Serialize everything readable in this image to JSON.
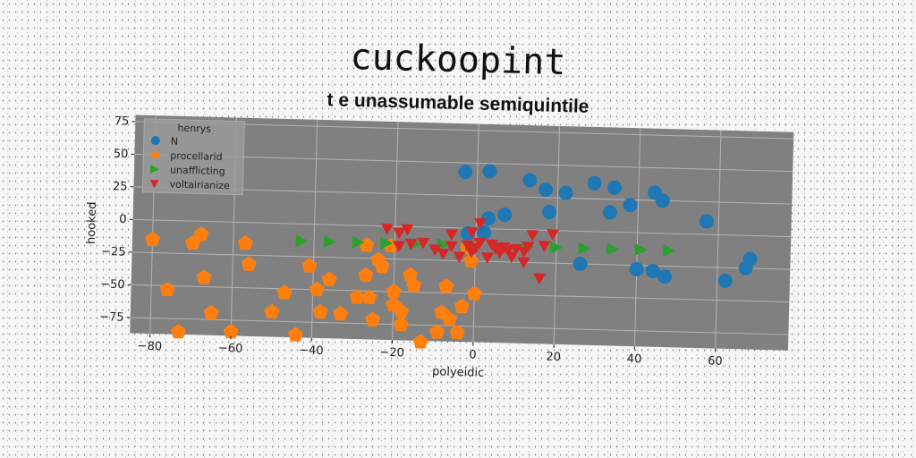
{
  "title": "cuckoopint",
  "subtitle": "t e unassumable semiquintile",
  "chart_data": {
    "type": "scatter",
    "xlabel": "polyeidic",
    "ylabel": "hooked",
    "xlim": [
      -85,
      78
    ],
    "ylim": [
      -87,
      80
    ],
    "xticks": [
      -80,
      -60,
      -40,
      -20,
      0,
      20,
      40,
      60
    ],
    "yticks": [
      75,
      50,
      25,
      0,
      -25,
      -50,
      -75
    ],
    "grid": true,
    "legend": {
      "title": "henrys",
      "position": "top-left"
    },
    "series": [
      {
        "name": "N",
        "color": "#1f77b4",
        "marker": "circle",
        "points": [
          [
            -3,
            43
          ],
          [
            3,
            44
          ],
          [
            13,
            38
          ],
          [
            17,
            31
          ],
          [
            22,
            29
          ],
          [
            29,
            37
          ],
          [
            34,
            34
          ],
          [
            38,
            21
          ],
          [
            44,
            31
          ],
          [
            46,
            25
          ],
          [
            33,
            15
          ],
          [
            18,
            14
          ],
          [
            7,
            11
          ],
          [
            3,
            8
          ],
          [
            2,
            -3
          ],
          [
            -2,
            -4
          ],
          [
            26,
            -25
          ],
          [
            40,
            -28
          ],
          [
            44,
            -29
          ],
          [
            47,
            -33
          ],
          [
            62,
            -35
          ],
          [
            68,
            -18
          ],
          [
            67,
            -25
          ],
          [
            57,
            10
          ]
        ]
      },
      {
        "name": "procellarid",
        "color": "#ff7f0e",
        "marker": "pentagon",
        "points": [
          [
            -80,
            -15
          ],
          [
            -76,
            -53
          ],
          [
            -73,
            -85
          ],
          [
            -70,
            -17
          ],
          [
            -68,
            -10
          ],
          [
            -67,
            -43
          ],
          [
            -65,
            -70
          ],
          [
            -60,
            -84
          ],
          [
            -57,
            -16
          ],
          [
            -56,
            -32
          ],
          [
            -50,
            -68
          ],
          [
            -47,
            -53
          ],
          [
            -44,
            -85
          ],
          [
            -41,
            -32
          ],
          [
            -39,
            -50
          ],
          [
            -38,
            -67
          ],
          [
            -36,
            -42
          ],
          [
            -33,
            -68
          ],
          [
            -29,
            -55
          ],
          [
            -27,
            -15
          ],
          [
            -27,
            -38
          ],
          [
            -26,
            -55
          ],
          [
            -25,
            -72
          ],
          [
            -24,
            -26
          ],
          [
            -23,
            -31
          ],
          [
            -21,
            -15
          ],
          [
            -20,
            -50
          ],
          [
            -20,
            -60
          ],
          [
            -18,
            -65
          ],
          [
            -18,
            -75
          ],
          [
            -16,
            -37
          ],
          [
            -15,
            -45
          ],
          [
            -13,
            -88
          ],
          [
            -9,
            -80
          ],
          [
            -8,
            -65
          ],
          [
            -7,
            -45
          ],
          [
            -6,
            -70
          ],
          [
            -4,
            -80
          ],
          [
            -3,
            -60
          ],
          [
            -2,
            -15
          ],
          [
            -1,
            -25
          ],
          [
            0,
            -50
          ]
        ]
      },
      {
        "name": "unafflicting",
        "color": "#2ca02c",
        "marker": "triangle-right",
        "points": [
          [
            -43,
            -13
          ],
          [
            -36,
            -13
          ],
          [
            -29,
            -13
          ],
          [
            -22,
            -13
          ],
          [
            -15,
            -13
          ],
          [
            -8,
            -13
          ],
          [
            -1,
            -13
          ],
          [
            6,
            -13
          ],
          [
            13,
            -13
          ],
          [
            20,
            -13
          ],
          [
            27,
            -13
          ],
          [
            34,
            -13
          ],
          [
            41,
            -13
          ],
          [
            48,
            -13
          ]
        ]
      },
      {
        "name": "voltairianize",
        "color": "#d62728",
        "marker": "triangle-down",
        "points": [
          [
            -22,
            -2
          ],
          [
            -19,
            -5
          ],
          [
            -17,
            -2
          ],
          [
            -19,
            -15
          ],
          [
            -16,
            -13
          ],
          [
            -13,
            -12
          ],
          [
            -10,
            -17
          ],
          [
            -8,
            -20
          ],
          [
            -6,
            -5
          ],
          [
            -6,
            -14
          ],
          [
            -4,
            -22
          ],
          [
            -2,
            -13
          ],
          [
            -1,
            -18
          ],
          [
            1,
            -11
          ],
          [
            1,
            4
          ],
          [
            3,
            -22
          ],
          [
            4,
            -12
          ],
          [
            5,
            -15
          ],
          [
            6,
            -18
          ],
          [
            7,
            -14
          ],
          [
            8,
            -16
          ],
          [
            9,
            -21
          ],
          [
            10,
            -15
          ],
          [
            12,
            -17
          ],
          [
            12,
            -25
          ],
          [
            13,
            -13
          ],
          [
            14,
            -4
          ],
          [
            16,
            -37
          ],
          [
            17,
            -12
          ],
          [
            19,
            -3
          ],
          [
            -1,
            -3
          ],
          [
            0,
            -15
          ]
        ]
      }
    ]
  }
}
